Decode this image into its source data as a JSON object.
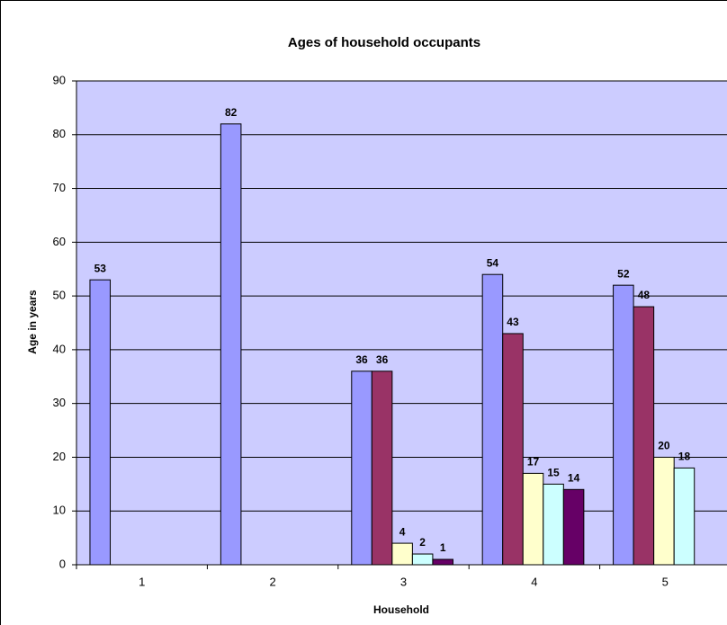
{
  "chart_data": {
    "type": "bar",
    "title": "Ages of household occupants",
    "x_label": "Household",
    "y_label": "Age in years",
    "categories": [
      "1",
      "2",
      "3",
      "4",
      "5"
    ],
    "series": [
      {
        "color": "#9999ff",
        "values": [
          53,
          82,
          36,
          54,
          52
        ]
      },
      {
        "color": "#993366",
        "values": [
          null,
          null,
          36,
          43,
          48
        ]
      },
      {
        "color": "#ffffcc",
        "values": [
          null,
          null,
          4,
          17,
          20
        ]
      },
      {
        "color": "#ccffff",
        "values": [
          null,
          null,
          2,
          15,
          18
        ]
      },
      {
        "color": "#660066",
        "values": [
          null,
          null,
          1,
          14,
          null
        ]
      }
    ],
    "ylim": [
      0,
      90
    ],
    "yticks": [
      0,
      10,
      20,
      30,
      40,
      50,
      60,
      70,
      80,
      90
    ],
    "grid": true,
    "plot_background": "#ccccff"
  }
}
